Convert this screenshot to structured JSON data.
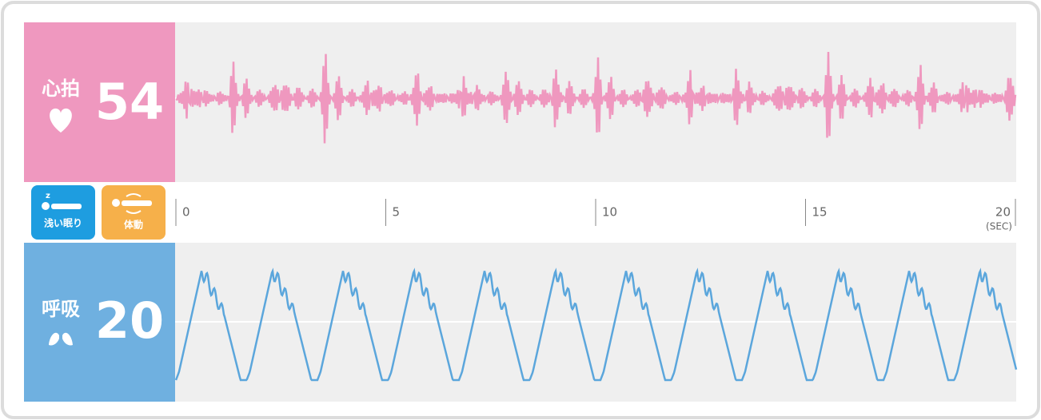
{
  "heart": {
    "label": "心拍",
    "value": 54
  },
  "respiration": {
    "label": "呼吸",
    "value": 20
  },
  "status": [
    "浅い眠り",
    "体動"
  ],
  "time_axis": {
    "lim": [
      0,
      20
    ],
    "ticks": [
      0,
      5,
      10,
      15,
      20
    ],
    "unit": "(SEC)"
  }
}
